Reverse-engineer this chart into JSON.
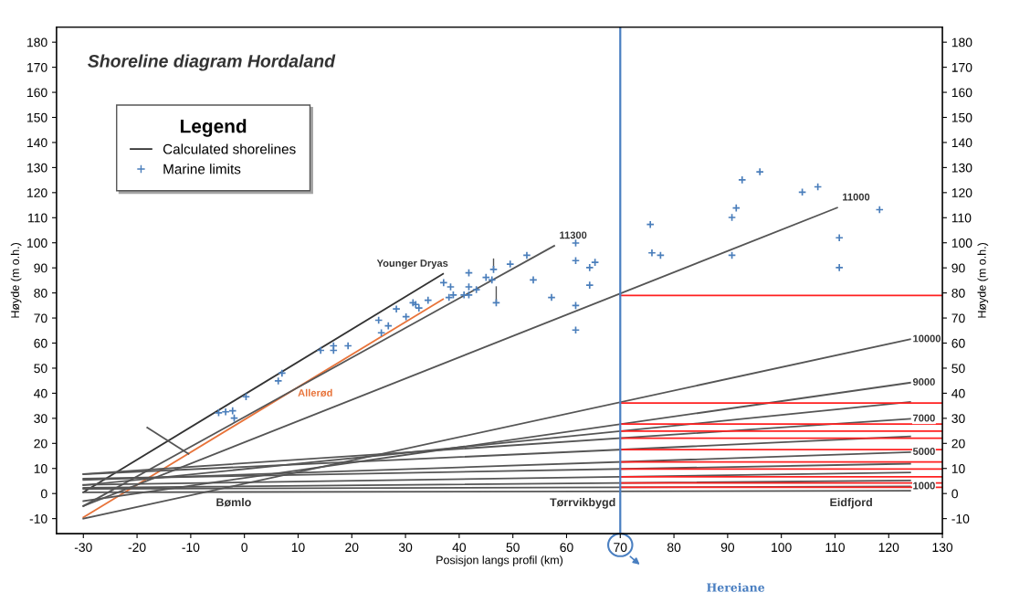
{
  "chart_data": {
    "type": "line",
    "title": "Shoreline diagram Hordaland",
    "xlabel": "Posisjon langs profil (km)",
    "ylabel": "Høyde (m o.h.)",
    "y2label": "Høyde (m o.h.)",
    "legend_title": "Legend",
    "xlim": [
      -35,
      130
    ],
    "xticks": [
      -30,
      -20,
      -10,
      0,
      10,
      20,
      30,
      40,
      50,
      60,
      70,
      80,
      90,
      100,
      110,
      120,
      130
    ],
    "ylim": [
      -16,
      186
    ],
    "yticks": [
      -10,
      0,
      10,
      20,
      30,
      40,
      50,
      60,
      70,
      80,
      90,
      100,
      110,
      120,
      130,
      140,
      150,
      160,
      170,
      180
    ],
    "y2lim": [
      -16,
      186
    ],
    "y2ticks": [
      -10,
      0,
      10,
      20,
      30,
      40,
      50,
      60,
      70,
      80,
      90,
      100,
      110,
      120,
      130,
      140,
      150,
      160,
      170,
      180
    ],
    "grid": false,
    "legend": "top left",
    "marker": "none",
    "line_style": "solid",
    "series": [
      {
        "name": "Calculated shorelines",
        "color": "#333333",
        "x": [
          -30,
          37
        ],
        "values": [
          0.5,
          87.6
        ]
      },
      {
        "color": "#e8743b",
        "x": [
          -30,
          37
        ],
        "values": [
          -9.5,
          77.5
        ]
      },
      {
        "color": "#555555",
        "x": [
          -30,
          57.7
        ],
        "values": [
          -5,
          98.8
        ]
      },
      {
        "color": "#555555",
        "x": [
          -30,
          110.4
        ],
        "values": [
          -5,
          114
        ]
      },
      {
        "color": "#555555",
        "x": [
          -30,
          124
        ],
        "values": [
          -10,
          61.5
        ]
      },
      {
        "color": "#555555",
        "x": [
          -30,
          124
        ],
        "values": [
          -3,
          44.2
        ]
      },
      {
        "color": "#555555",
        "x": [
          -30,
          124
        ],
        "values": [
          3.3,
          36.5
        ]
      },
      {
        "color": "#555555",
        "x": [
          -30,
          124
        ],
        "values": [
          7.8,
          29.8
        ]
      },
      {
        "color": "#555555",
        "x": [
          -30,
          124
        ],
        "values": [
          7.7,
          22.8
        ]
      },
      {
        "color": "#555555",
        "x": [
          -30,
          124
        ],
        "values": [
          5.4,
          16.5
        ]
      },
      {
        "color": "#555555",
        "x": [
          -30,
          124
        ],
        "values": [
          5.9,
          11.9
        ]
      },
      {
        "color": "#555555",
        "x": [
          -30,
          124
        ],
        "values": [
          3.5,
          8.4
        ]
      },
      {
        "color": "#555555",
        "x": [
          -30,
          124
        ],
        "values": [
          2.3,
          5.2
        ]
      },
      {
        "color": "#555555",
        "x": [
          -30,
          124
        ],
        "values": [
          1.9,
          2.8
        ]
      },
      {
        "color": "#555555",
        "x": [
          -30,
          124
        ],
        "values": [
          0.5,
          1.1
        ]
      },
      {
        "color": "#555555",
        "x": [
          -18.1,
          -10.4
        ],
        "values": [
          26.3,
          15.8
        ]
      },
      {
        "color": "#ff2020",
        "x": [
          70,
          130
        ],
        "values": [
          79,
          79
        ]
      },
      {
        "color": "#ff2020",
        "x": [
          70,
          130
        ],
        "values": [
          36.1,
          36.1
        ]
      },
      {
        "color": "#ff2020",
        "x": [
          70,
          130
        ],
        "values": [
          27.7,
          27.7
        ]
      },
      {
        "color": "#ff2020",
        "x": [
          70,
          130
        ],
        "values": [
          24.9,
          24.9
        ]
      },
      {
        "color": "#ff2020",
        "x": [
          70,
          130
        ],
        "values": [
          22.1,
          22.1
        ]
      },
      {
        "color": "#ff2020",
        "x": [
          70,
          130
        ],
        "values": [
          17.5,
          17.5
        ]
      },
      {
        "color": "#ff2020",
        "x": [
          70,
          130
        ],
        "values": [
          12.6,
          12.6
        ]
      },
      {
        "color": "#ff2020",
        "x": [
          70,
          130
        ],
        "values": [
          9.8,
          9.8
        ]
      },
      {
        "color": "#ff2020",
        "x": [
          70,
          130
        ],
        "values": [
          6.7,
          6.7
        ]
      },
      {
        "color": "#ff2020",
        "x": [
          70,
          130
        ],
        "values": [
          4.2,
          4.2
        ]
      },
      {
        "color": "#ff2020",
        "x": [
          70,
          130
        ],
        "values": [
          2.5,
          2.5
        ]
      },
      {
        "name": "Marine limits",
        "type": "scatter",
        "color": "#4a7ebb",
        "marker": "cross",
        "x": [
          -4.8,
          -3.5,
          -2.2,
          -1.9,
          0.3,
          6.3,
          7.0,
          14.2,
          16.6,
          16.6,
          19.3,
          25.0,
          25.5,
          26.8,
          28.3,
          30.1,
          31.4,
          31.9,
          32.5,
          34.2,
          37.1,
          38.4,
          38.1,
          38.9,
          41.8,
          41.8,
          41.8,
          40.9,
          43.2,
          45,
          46.4,
          46.1,
          46.9,
          49.5,
          52.6,
          53.8,
          57.2,
          61.7,
          61.7,
          61.7,
          61.7,
          64.3,
          64.3,
          65.3,
          75.6,
          75.9,
          77.5,
          92.7,
          96,
          91.6,
          90.8,
          90.8,
          103.9,
          106.8,
          118.3,
          110.8,
          110.8
        ],
        "values": [
          32.2,
          32.6,
          33,
          30.1,
          38.6,
          44.9,
          48,
          57.1,
          58.9,
          57.1,
          58.9,
          69.1,
          64.1,
          66.9,
          73.6,
          70.5,
          76.1,
          75.4,
          74,
          77.1,
          84.1,
          82.4,
          78.2,
          79.2,
          88,
          82.4,
          79.2,
          79.2,
          81.3,
          86.2,
          89.4,
          85.2,
          76.1,
          91.5,
          95,
          85.2,
          78.2,
          99.9,
          92.9,
          75,
          65.2,
          90.1,
          83.1,
          92.2,
          107.3,
          96,
          95,
          125.1,
          128.3,
          113.9,
          110.1,
          95,
          120.2,
          122.3,
          113.2,
          102,
          90.1
        ],
        "errors": [
          null,
          null,
          null,
          null,
          null,
          null,
          null,
          null,
          null,
          null,
          null,
          null,
          null,
          null,
          null,
          null,
          null,
          null,
          null,
          null,
          null,
          null,
          null,
          null,
          null,
          null,
          null,
          null,
          null,
          null,
          [
            89.4,
            93.5
          ],
          null,
          [
            76.1,
            82.4
          ],
          null,
          null,
          null,
          null,
          null,
          null,
          null,
          null,
          null,
          null,
          null,
          null,
          null,
          null,
          null,
          null,
          null,
          null,
          null,
          null,
          null,
          null,
          null,
          null
        ]
      }
    ],
    "ref_lines": [
      {
        "axis": "x",
        "value": 70,
        "color": "#4a7fc1",
        "line_style": "solid"
      }
    ],
    "annotations": [
      {
        "text": "Younger Dryas",
        "x": 37,
        "y": 87.6
      },
      {
        "text": "Allerød",
        "x": 8,
        "y": 39.8
      },
      {
        "text": "11300",
        "x": 57.7,
        "y": 98.8
      },
      {
        "text": "11000",
        "x": 110.4,
        "y": 114
      },
      {
        "text": "10000",
        "x": 124,
        "y": 61.5
      },
      {
        "text": "9000",
        "x": 124,
        "y": 44.2
      },
      {
        "text": "7000",
        "x": 124,
        "y": 29.8
      },
      {
        "text": "5000",
        "x": 124,
        "y": 16.5
      },
      {
        "text": "1000",
        "x": 124,
        "y": 2.8
      },
      "Bømlo",
      "Tørrvikbygd",
      "Eidfjord",
      "Hereiane"
    ]
  }
}
